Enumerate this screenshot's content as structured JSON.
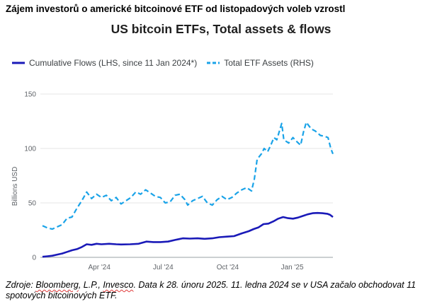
{
  "header": {
    "top_title": "Zájem investorů o americké bitcoinové ETF od listopadových voleb vzrostl"
  },
  "chart_data": {
    "type": "line",
    "title": "US bitcoin ETFs, Total assets & flows",
    "ylabel": "Billions USD",
    "xlabel": "",
    "ylim": [
      0,
      150
    ],
    "yticks": [
      0,
      50,
      100,
      150
    ],
    "ytick_labels": [
      "0",
      "50",
      "100",
      "150"
    ],
    "xlim": [
      "2024-01-11",
      "2025-02-28"
    ],
    "xticks": [
      "2024-04-01",
      "2024-07-01",
      "2024-10-01",
      "2025-01-01"
    ],
    "xtick_labels": [
      "Apr '24",
      "Jul '24",
      "Oct '24",
      "Jan '25"
    ],
    "grid": "horizontal",
    "legend_position": "top-left",
    "series": [
      {
        "name": "Cumulative Flows (LHS, since 11 Jan 2024*)",
        "color": "#1a1ab8",
        "style": "solid",
        "points": [
          [
            "2024-01-11",
            0.5
          ],
          [
            "2024-01-18",
            1.0
          ],
          [
            "2024-01-25",
            1.5
          ],
          [
            "2024-02-01",
            2.5
          ],
          [
            "2024-02-08",
            3.5
          ],
          [
            "2024-02-15",
            5.0
          ],
          [
            "2024-02-22",
            6.5
          ],
          [
            "2024-02-29",
            7.5
          ],
          [
            "2024-03-07",
            9.5
          ],
          [
            "2024-03-14",
            12.0
          ],
          [
            "2024-03-21",
            11.5
          ],
          [
            "2024-03-28",
            12.5
          ],
          [
            "2024-04-04",
            12.0
          ],
          [
            "2024-04-15",
            12.5
          ],
          [
            "2024-04-25",
            12.0
          ],
          [
            "2024-05-02",
            11.8
          ],
          [
            "2024-05-15",
            12.0
          ],
          [
            "2024-05-27",
            12.5
          ],
          [
            "2024-06-07",
            14.5
          ],
          [
            "2024-06-17",
            14.0
          ],
          [
            "2024-06-27",
            14.0
          ],
          [
            "2024-07-08",
            14.5
          ],
          [
            "2024-07-18",
            16.0
          ],
          [
            "2024-07-29",
            17.5
          ],
          [
            "2024-08-08",
            17.2
          ],
          [
            "2024-08-19",
            17.5
          ],
          [
            "2024-08-29",
            17.0
          ],
          [
            "2024-09-09",
            17.5
          ],
          [
            "2024-09-19",
            18.5
          ],
          [
            "2024-09-30",
            19.0
          ],
          [
            "2024-10-10",
            19.5
          ],
          [
            "2024-10-21",
            22.0
          ],
          [
            "2024-10-31",
            24.0
          ],
          [
            "2024-11-07",
            26.0
          ],
          [
            "2024-11-14",
            27.5
          ],
          [
            "2024-11-21",
            30.5
          ],
          [
            "2024-11-28",
            31.0
          ],
          [
            "2024-12-05",
            33.0
          ],
          [
            "2024-12-12",
            35.5
          ],
          [
            "2024-12-19",
            37.0
          ],
          [
            "2024-12-26",
            36.0
          ],
          [
            "2025-01-02",
            35.5
          ],
          [
            "2025-01-09",
            36.5
          ],
          [
            "2025-01-16",
            38.0
          ],
          [
            "2025-01-23",
            39.5
          ],
          [
            "2025-01-30",
            40.5
          ],
          [
            "2025-02-06",
            40.8
          ],
          [
            "2025-02-13",
            40.5
          ],
          [
            "2025-02-20",
            40.0
          ],
          [
            "2025-02-24",
            39.0
          ],
          [
            "2025-02-28",
            37.0
          ]
        ]
      },
      {
        "name": "Total ETF Assets (RHS)",
        "color": "#1aa3e8",
        "style": "dashed",
        "points": [
          [
            "2024-01-11",
            29
          ],
          [
            "2024-01-18",
            27
          ],
          [
            "2024-01-25",
            26
          ],
          [
            "2024-02-01",
            28
          ],
          [
            "2024-02-08",
            30
          ],
          [
            "2024-02-15",
            36
          ],
          [
            "2024-02-22",
            37
          ],
          [
            "2024-02-29",
            45
          ],
          [
            "2024-03-07",
            52
          ],
          [
            "2024-03-14",
            60
          ],
          [
            "2024-03-21",
            54
          ],
          [
            "2024-03-28",
            58
          ],
          [
            "2024-04-04",
            55
          ],
          [
            "2024-04-11",
            57
          ],
          [
            "2024-04-18",
            52
          ],
          [
            "2024-04-25",
            55
          ],
          [
            "2024-05-02",
            49
          ],
          [
            "2024-05-09",
            52
          ],
          [
            "2024-05-16",
            55
          ],
          [
            "2024-05-23",
            60
          ],
          [
            "2024-05-30",
            58
          ],
          [
            "2024-06-06",
            62
          ],
          [
            "2024-06-13",
            59
          ],
          [
            "2024-06-20",
            56
          ],
          [
            "2024-06-27",
            55
          ],
          [
            "2024-07-04",
            50
          ],
          [
            "2024-07-11",
            51
          ],
          [
            "2024-07-18",
            57
          ],
          [
            "2024-07-25",
            58
          ],
          [
            "2024-08-01",
            53
          ],
          [
            "2024-08-05",
            48
          ],
          [
            "2024-08-12",
            52
          ],
          [
            "2024-08-19",
            54
          ],
          [
            "2024-08-26",
            56
          ],
          [
            "2024-09-02",
            50
          ],
          [
            "2024-09-09",
            48
          ],
          [
            "2024-09-16",
            53
          ],
          [
            "2024-09-23",
            56
          ],
          [
            "2024-09-30",
            53
          ],
          [
            "2024-10-07",
            55
          ],
          [
            "2024-10-14",
            59
          ],
          [
            "2024-10-21",
            62
          ],
          [
            "2024-10-28",
            64
          ],
          [
            "2024-11-04",
            61
          ],
          [
            "2024-11-08",
            72
          ],
          [
            "2024-11-12",
            90
          ],
          [
            "2024-11-18",
            95
          ],
          [
            "2024-11-22",
            100
          ],
          [
            "2024-11-27",
            97
          ],
          [
            "2024-12-02",
            104
          ],
          [
            "2024-12-06",
            110
          ],
          [
            "2024-12-10",
            108
          ],
          [
            "2024-12-17",
            123
          ],
          [
            "2024-12-20",
            108
          ],
          [
            "2024-12-27",
            105
          ],
          [
            "2025-01-02",
            110
          ],
          [
            "2025-01-08",
            106
          ],
          [
            "2025-01-13",
            103
          ],
          [
            "2025-01-17",
            115
          ],
          [
            "2025-01-21",
            124
          ],
          [
            "2025-01-28",
            118
          ],
          [
            "2025-02-03",
            116
          ],
          [
            "2025-02-10",
            112
          ],
          [
            "2025-02-17",
            111
          ],
          [
            "2025-02-21",
            110
          ],
          [
            "2025-02-25",
            100
          ],
          [
            "2025-02-28",
            95
          ]
        ]
      }
    ]
  },
  "source_note": {
    "prefix": "Zdroje: ",
    "word1": "Bloomberg",
    "mid1": ", L.P., ",
    "word2": "Invesco",
    "rest": ". Data k 28. únoru 2025. 11. ledna 2024 se v USA začalo obchodovat 11 spotových bitcoinových ETF."
  }
}
